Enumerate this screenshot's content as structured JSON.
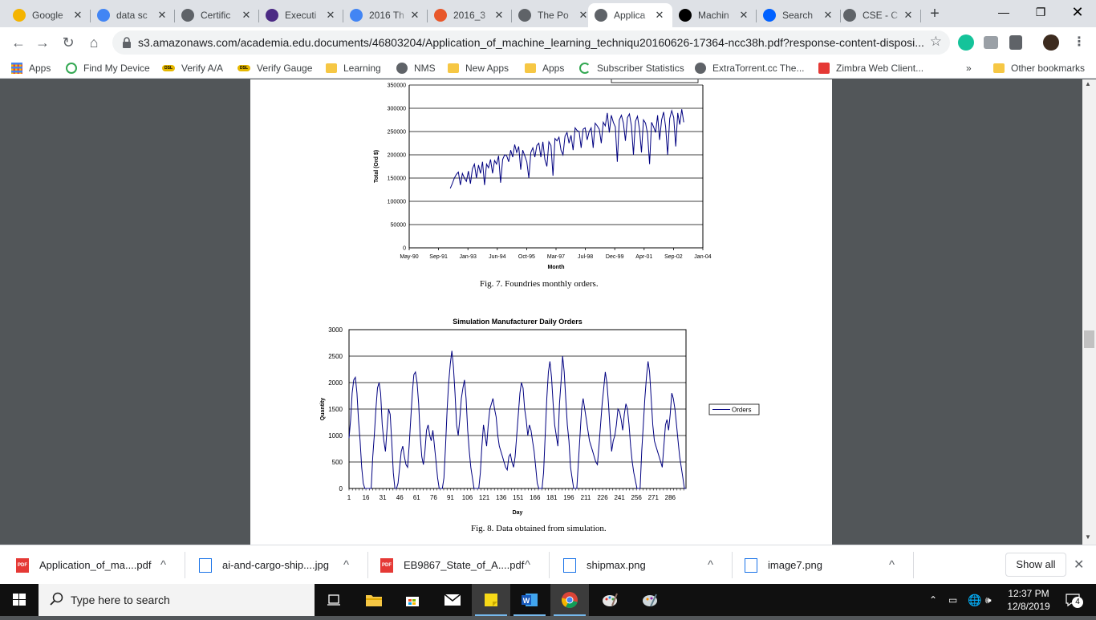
{
  "browser": {
    "tabs": [
      {
        "title": "Google",
        "icon": "google-keep-icon",
        "color": "#f4b400"
      },
      {
        "title": "data sc",
        "icon": "google-icon",
        "color": "#4285f4"
      },
      {
        "title": "Certific",
        "icon": "globe-icon",
        "color": "#5f6368"
      },
      {
        "title": "Executi",
        "icon": "bdo-icon",
        "color": "#4b2a84"
      },
      {
        "title": "2016 Th",
        "icon": "google-icon",
        "color": "#4285f4"
      },
      {
        "title": "2016_3",
        "icon": "magento-icon",
        "color": "#e8572a"
      },
      {
        "title": "The Po",
        "icon": "globe-icon",
        "color": "#5f6368"
      },
      {
        "title": "Applica",
        "icon": "globe-icon",
        "color": "#5f6368",
        "active": true
      },
      {
        "title": "Machin",
        "icon": "medium-icon",
        "color": "#000000"
      },
      {
        "title": "Search",
        "icon": "dropbox-icon",
        "color": "#0061ff"
      },
      {
        "title": "CSE - C",
        "icon": "globe-icon",
        "color": "#5f6368"
      }
    ],
    "url": "s3.amazonaws.com/academia.edu.documents/46803204/Application_of_machine_learning_techniqu20160626-17364-ncc38h.pdf?response-content-disposi...",
    "bookmarks": [
      {
        "label": "Apps",
        "icon": "apps-grid-icon"
      },
      {
        "label": "Find My Device",
        "icon": "find-device-icon"
      },
      {
        "label": "Verify A/A",
        "icon": "dsl-icon"
      },
      {
        "label": "Verify Gauge",
        "icon": "dsl-icon"
      },
      {
        "label": "Learning",
        "icon": "folder-icon"
      },
      {
        "label": "NMS",
        "icon": "globe-icon"
      },
      {
        "label": "New Apps",
        "icon": "folder-icon"
      },
      {
        "label": "Apps",
        "icon": "folder-icon"
      },
      {
        "label": "Subscriber Statistics",
        "icon": "subscriber-icon"
      },
      {
        "label": "ExtraTorrent.cc The...",
        "icon": "globe-icon"
      },
      {
        "label": "Zimbra Web Client...",
        "icon": "zimbra-icon"
      }
    ],
    "bookmarks_overflow": "»",
    "other_bookmarks": "Other bookmarks"
  },
  "pdf": {
    "fig7_caption": "Fig. 7.  Foundries monthly orders.",
    "fig8_caption": "Fig. 8.  Data obtained from simulation."
  },
  "chart_data": [
    {
      "type": "line",
      "title": "",
      "xlabel": "Month",
      "ylabel": "Total (Ord $)",
      "x_ticks": [
        "May-90",
        "Sep-91",
        "Jan-93",
        "Jun-94",
        "Oct-95",
        "Mar-97",
        "Jul-98",
        "Dec-99",
        "Apr-01",
        "Sep-02",
        "Jan-04"
      ],
      "y_ticks": [
        0,
        50000,
        100000,
        150000,
        200000,
        250000,
        300000,
        350000
      ],
      "ylim": [
        0,
        350000
      ],
      "grid": true,
      "series": [
        {
          "values": [
            128000,
            138000,
            150000,
            158000,
            163000,
            135000,
            160000,
            150000,
            143000,
            165000,
            138000,
            170000,
            180000,
            150000,
            178000,
            160000,
            185000,
            135000,
            180000,
            172000,
            190000,
            160000,
            188000,
            180000,
            198000,
            140000,
            190000,
            200000,
            198000,
            185000,
            210000,
            195000,
            222000,
            205000,
            218000,
            168000,
            210000,
            198000,
            185000,
            150000,
            205000,
            215000,
            195000,
            220000,
            225000,
            195000,
            228000,
            190000,
            175000,
            228000,
            220000,
            155000,
            235000,
            230000,
            238000,
            210000,
            200000,
            240000,
            248000,
            225000,
            242000,
            210000,
            258000,
            252000,
            250000,
            215000,
            255000,
            258000,
            232000,
            250000,
            258000,
            215000,
            268000,
            262000,
            255000,
            225000,
            270000,
            262000,
            290000,
            248000,
            285000,
            270000,
            260000,
            185000,
            275000,
            285000,
            268000,
            230000,
            280000,
            288000,
            262000,
            200000,
            272000,
            283000,
            255000,
            205000,
            275000,
            268000,
            245000,
            180000,
            270000,
            260000,
            248000,
            285000,
            232000,
            275000,
            292000,
            260000,
            200000,
            278000,
            295000,
            280000,
            218000,
            290000,
            265000,
            298000,
            270000
          ]
        }
      ]
    },
    {
      "type": "line",
      "title": "Simulation Manufacturer Daily Orders",
      "xlabel": "Day",
      "ylabel": "Quantity",
      "x_ticks": [
        "1",
        "16",
        "31",
        "46",
        "61",
        "76",
        "91",
        "106",
        "121",
        "136",
        "151",
        "166",
        "181",
        "196",
        "211",
        "226",
        "241",
        "256",
        "271",
        "286"
      ],
      "y_ticks": [
        0,
        500,
        1000,
        1500,
        2000,
        2500,
        3000
      ],
      "ylim": [
        0,
        3000
      ],
      "xlim": [
        1,
        300
      ],
      "grid": true,
      "legend": "right",
      "series": [
        {
          "name": "Orders",
          "values": [
            950,
            1300,
            1800,
            2050,
            2100,
            1800,
            1300,
            900,
            400,
            100,
            0,
            0,
            0,
            0,
            0,
            600,
            1000,
            1500,
            1900,
            2000,
            1800,
            1200,
            900,
            700,
            1100,
            1500,
            1400,
            900,
            300,
            0,
            0,
            100,
            400,
            700,
            800,
            600,
            450,
            400,
            800,
            1300,
            1800,
            2150,
            2200,
            2000,
            1600,
            1000,
            600,
            450,
            700,
            1100,
            1200,
            1000,
            900,
            1100,
            800,
            500,
            200,
            0,
            0,
            0,
            200,
            800,
            1500,
            2000,
            2350,
            2600,
            2300,
            1800,
            1200,
            1000,
            1300,
            1700,
            1900,
            2050,
            1700,
            1100,
            700,
            400,
            200,
            0,
            0,
            0,
            0,
            300,
            800,
            1200,
            1000,
            800,
            1200,
            1500,
            1600,
            1700,
            1500,
            1350,
            1000,
            800,
            700,
            600,
            500,
            400,
            350,
            600,
            650,
            500,
            400,
            600,
            1000,
            1400,
            1800,
            2000,
            1900,
            1500,
            1300,
            1000,
            1200,
            1100,
            900,
            700,
            400,
            100,
            0,
            0,
            0,
            300,
            1000,
            1700,
            2200,
            2400,
            2100,
            1600,
            1200,
            1000,
            800,
            1600,
            2000,
            2500,
            2200,
            1700,
            1200,
            900,
            400,
            200,
            0,
            0,
            0,
            500,
            1000,
            1500,
            1700,
            1500,
            1300,
            1100,
            900,
            800,
            700,
            600,
            500,
            450,
            800,
            1200,
            1600,
            1900,
            2200,
            2000,
            1600,
            1100,
            700,
            900,
            1000,
            1200,
            1500,
            1450,
            1300,
            1100,
            1400,
            1600,
            1500,
            1200,
            800,
            500,
            300,
            150,
            0,
            0,
            0,
            700,
            1200,
            1700,
            2100,
            2400,
            2200,
            1700,
            1200,
            900,
            800,
            700,
            600,
            500,
            400,
            800,
            1200,
            1300,
            1100,
            1400,
            1800,
            1700,
            1500,
            1200,
            900,
            600,
            400,
            200,
            0,
            0
          ]
        }
      ]
    }
  ],
  "downloads": [
    {
      "name": "Application_of_ma....pdf",
      "type": "pdf"
    },
    {
      "name": "ai-and-cargo-ship....jpg",
      "type": "image"
    },
    {
      "name": "EB9867_State_of_A....pdf",
      "type": "pdf"
    },
    {
      "name": "shipmax.png",
      "type": "image"
    },
    {
      "name": "image7.png",
      "type": "image"
    }
  ],
  "show_all_label": "Show all",
  "taskbar": {
    "search_placeholder": "Type here to search",
    "time": "12:37 PM",
    "date": "12/8/2019",
    "notification_count": "4"
  }
}
